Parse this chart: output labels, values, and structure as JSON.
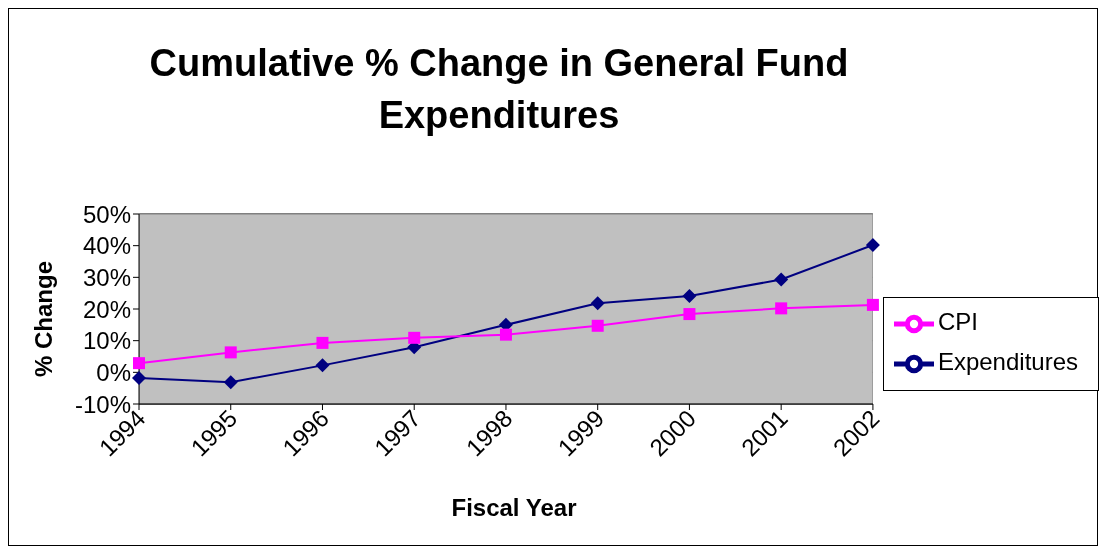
{
  "chart_data": {
    "type": "line",
    "title": "Cumulative % Change in General Fund Expenditures",
    "xlabel": "Fiscal Year",
    "ylabel": "% Change",
    "categories": [
      "1994",
      "1995",
      "1996",
      "1997",
      "1998",
      "1999",
      "2000",
      "2001",
      "2002"
    ],
    "series": [
      {
        "name": "Expenditures",
        "color": "#000080",
        "marker": "diamond",
        "values": [
          -1.8,
          -3.1,
          2.2,
          7.9,
          15,
          21.8,
          24.1,
          29.3,
          40.2
        ]
      },
      {
        "name": "CPI",
        "color": "#ff00ff",
        "marker": "square",
        "values": [
          2.9,
          6.3,
          9.3,
          10.9,
          11.9,
          14.7,
          18.4,
          20.2,
          21.3
        ]
      }
    ],
    "ylim": [
      -10,
      50
    ],
    "yticks": [
      {
        "value": -10,
        "label": "-10%"
      },
      {
        "value": 0,
        "label": "0%"
      },
      {
        "value": 10,
        "label": "10%"
      },
      {
        "value": 20,
        "label": "20%"
      },
      {
        "value": 30,
        "label": "30%"
      },
      {
        "value": 40,
        "label": "40%"
      },
      {
        "value": 50,
        "label": "50%"
      }
    ],
    "grid": "y",
    "legend": "right",
    "line_style": "solid"
  }
}
